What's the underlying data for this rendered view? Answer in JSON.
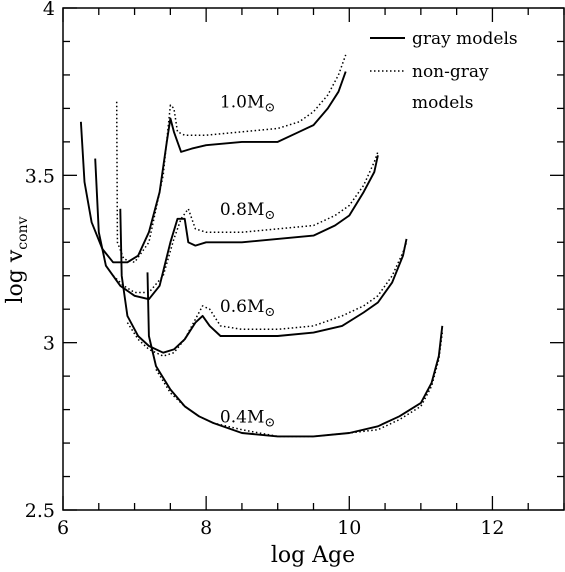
{
  "chart_data": {
    "type": "line",
    "xlabel": "log Age",
    "ylabel_main": "log v",
    "ylabel_sub": "conv",
    "xlim": [
      6,
      13
    ],
    "ylim": [
      2.5,
      4
    ],
    "x_ticks": [
      6,
      8,
      10,
      12
    ],
    "y_ticks": [
      2.5,
      3,
      3.5,
      4
    ],
    "x_tick_labels": [
      "6",
      "8",
      "10",
      "12"
    ],
    "y_tick_labels": [
      "2.5",
      "3",
      "3.5",
      "4"
    ],
    "grid": false,
    "legend_position": "top-right",
    "legend": [
      {
        "label": "gray models",
        "style": "solid"
      },
      {
        "label": "non-gray",
        "style": "dotted"
      },
      {
        "label": "models",
        "style": "none"
      }
    ],
    "mass_labels": [
      {
        "text": "1.0M",
        "suffix": "⊙",
        "x": 8.5,
        "y": 3.72
      },
      {
        "text": "0.8M",
        "suffix": "⊙",
        "x": 8.5,
        "y": 3.4
      },
      {
        "text": "0.6M",
        "suffix": "⊙",
        "x": 8.5,
        "y": 3.11
      },
      {
        "text": "0.4M",
        "suffix": "⊙",
        "x": 8.5,
        "y": 2.78
      }
    ],
    "series": [
      {
        "mass": "1.0",
        "style": "solid",
        "points": [
          [
            6.25,
            3.66
          ],
          [
            6.3,
            3.48
          ],
          [
            6.4,
            3.36
          ],
          [
            6.55,
            3.28
          ],
          [
            6.7,
            3.24
          ],
          [
            6.9,
            3.24
          ],
          [
            7.05,
            3.26
          ],
          [
            7.2,
            3.33
          ],
          [
            7.35,
            3.45
          ],
          [
            7.45,
            3.6
          ],
          [
            7.5,
            3.67
          ],
          [
            7.55,
            3.63
          ],
          [
            7.6,
            3.6
          ],
          [
            7.65,
            3.57
          ],
          [
            7.8,
            3.58
          ],
          [
            8,
            3.59
          ],
          [
            8.5,
            3.6
          ],
          [
            9,
            3.6
          ],
          [
            9.3,
            3.63
          ],
          [
            9.5,
            3.65
          ],
          [
            9.7,
            3.7
          ],
          [
            9.85,
            3.75
          ],
          [
            9.95,
            3.81
          ]
        ]
      },
      {
        "mass": "1.0",
        "style": "dotted",
        "points": [
          [
            6.75,
            3.72
          ],
          [
            6.76,
            3.3
          ],
          [
            6.85,
            3.25
          ],
          [
            7,
            3.24
          ],
          [
            7.2,
            3.3
          ],
          [
            7.4,
            3.5
          ],
          [
            7.5,
            3.71
          ],
          [
            7.55,
            3.7
          ],
          [
            7.6,
            3.63
          ],
          [
            7.7,
            3.62
          ],
          [
            8,
            3.62
          ],
          [
            8.5,
            3.63
          ],
          [
            9,
            3.64
          ],
          [
            9.3,
            3.66
          ],
          [
            9.5,
            3.69
          ],
          [
            9.7,
            3.74
          ],
          [
            9.85,
            3.8
          ],
          [
            9.95,
            3.86
          ]
        ]
      },
      {
        "mass": "0.8",
        "style": "solid",
        "points": [
          [
            6.45,
            3.55
          ],
          [
            6.5,
            3.33
          ],
          [
            6.6,
            3.23
          ],
          [
            6.8,
            3.17
          ],
          [
            7,
            3.14
          ],
          [
            7.2,
            3.13
          ],
          [
            7.35,
            3.17
          ],
          [
            7.5,
            3.3
          ],
          [
            7.6,
            3.37
          ],
          [
            7.7,
            3.37
          ],
          [
            7.75,
            3.3
          ],
          [
            7.85,
            3.29
          ],
          [
            8,
            3.3
          ],
          [
            8.5,
            3.3
          ],
          [
            9,
            3.31
          ],
          [
            9.5,
            3.32
          ],
          [
            9.8,
            3.35
          ],
          [
            10,
            3.38
          ],
          [
            10.2,
            3.45
          ],
          [
            10.35,
            3.51
          ],
          [
            10.4,
            3.56
          ]
        ]
      },
      {
        "mass": "0.8",
        "style": "dotted",
        "points": [
          [
            6.7,
            3.2
          ],
          [
            6.85,
            3.17
          ],
          [
            7,
            3.15
          ],
          [
            7.2,
            3.15
          ],
          [
            7.4,
            3.2
          ],
          [
            7.55,
            3.31
          ],
          [
            7.65,
            3.37
          ],
          [
            7.75,
            3.4
          ],
          [
            7.85,
            3.34
          ],
          [
            8,
            3.33
          ],
          [
            8.5,
            3.33
          ],
          [
            9,
            3.34
          ],
          [
            9.5,
            3.35
          ],
          [
            9.8,
            3.38
          ],
          [
            10,
            3.41
          ],
          [
            10.2,
            3.47
          ],
          [
            10.35,
            3.54
          ],
          [
            10.4,
            3.57
          ]
        ]
      },
      {
        "mass": "0.6",
        "style": "solid",
        "points": [
          [
            6.8,
            3.4
          ],
          [
            6.82,
            3.2
          ],
          [
            6.9,
            3.08
          ],
          [
            7.05,
            3.02
          ],
          [
            7.2,
            2.99
          ],
          [
            7.4,
            2.97
          ],
          [
            7.55,
            2.98
          ],
          [
            7.7,
            3.01
          ],
          [
            7.85,
            3.06
          ],
          [
            7.95,
            3.08
          ],
          [
            8.05,
            3.05
          ],
          [
            8.2,
            3.02
          ],
          [
            8.5,
            3.02
          ],
          [
            9,
            3.02
          ],
          [
            9.5,
            3.03
          ],
          [
            9.9,
            3.05
          ],
          [
            10.2,
            3.09
          ],
          [
            10.4,
            3.12
          ],
          [
            10.6,
            3.18
          ],
          [
            10.75,
            3.26
          ],
          [
            10.8,
            3.31
          ]
        ]
      },
      {
        "mass": "0.6",
        "style": "dotted",
        "points": [
          [
            6.9,
            3.06
          ],
          [
            7.05,
            3.01
          ],
          [
            7.2,
            2.98
          ],
          [
            7.4,
            2.96
          ],
          [
            7.55,
            2.97
          ],
          [
            7.7,
            3.01
          ],
          [
            7.85,
            3.07
          ],
          [
            7.95,
            3.11
          ],
          [
            8.05,
            3.1
          ],
          [
            8.2,
            3.05
          ],
          [
            8.5,
            3.04
          ],
          [
            9,
            3.04
          ],
          [
            9.5,
            3.05
          ],
          [
            9.9,
            3.08
          ],
          [
            10.2,
            3.11
          ],
          [
            10.4,
            3.14
          ],
          [
            10.6,
            3.2
          ],
          [
            10.75,
            3.27
          ],
          [
            10.8,
            3.3
          ]
        ]
      },
      {
        "mass": "0.4",
        "style": "solid",
        "points": [
          [
            7.18,
            3.21
          ],
          [
            7.2,
            3.02
          ],
          [
            7.3,
            2.93
          ],
          [
            7.5,
            2.86
          ],
          [
            7.7,
            2.81
          ],
          [
            7.9,
            2.78
          ],
          [
            8.1,
            2.76
          ],
          [
            8.5,
            2.73
          ],
          [
            9,
            2.72
          ],
          [
            9.5,
            2.72
          ],
          [
            10,
            2.73
          ],
          [
            10.4,
            2.75
          ],
          [
            10.7,
            2.78
          ],
          [
            11,
            2.82
          ],
          [
            11.15,
            2.88
          ],
          [
            11.25,
            2.96
          ],
          [
            11.3,
            3.05
          ]
        ]
      },
      {
        "mass": "0.4",
        "style": "dotted",
        "points": [
          [
            7.3,
            2.92
          ],
          [
            7.5,
            2.85
          ],
          [
            7.7,
            2.81
          ],
          [
            7.9,
            2.78
          ],
          [
            8.1,
            2.76
          ],
          [
            8.5,
            2.74
          ],
          [
            9,
            2.72
          ],
          [
            9.5,
            2.72
          ],
          [
            10,
            2.73
          ],
          [
            10.4,
            2.74
          ],
          [
            10.7,
            2.77
          ],
          [
            11,
            2.81
          ],
          [
            11.15,
            2.87
          ],
          [
            11.25,
            2.95
          ],
          [
            11.3,
            3.03
          ]
        ]
      }
    ]
  }
}
